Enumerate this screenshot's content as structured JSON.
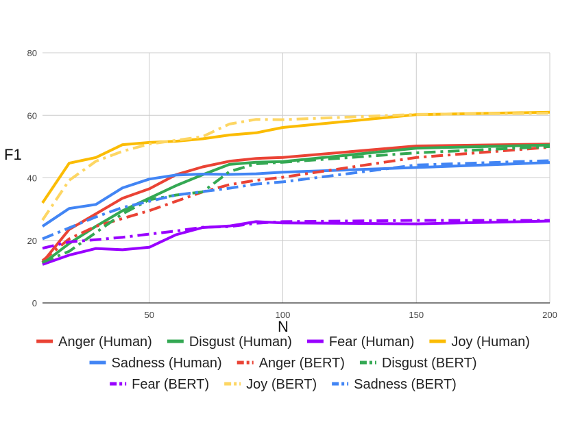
{
  "chart_data": {
    "type": "line",
    "title": "",
    "xlabel": "N",
    "ylabel": "F1",
    "xlim": [
      10,
      200
    ],
    "ylim": [
      0,
      80
    ],
    "xticks": [
      50,
      100,
      150,
      200
    ],
    "yticks": [
      0,
      20,
      40,
      60,
      80
    ],
    "grid": true,
    "legend_position": "bottom",
    "series": [
      {
        "name": "Anger (Human)",
        "color": "#ea4335",
        "style": "solid",
        "x": [
          10,
          20,
          30,
          40,
          50,
          60,
          70,
          80,
          90,
          100,
          150,
          200
        ],
        "y": [
          13,
          23.5,
          28.5,
          33.5,
          36.5,
          41,
          43.5,
          45.3,
          46.2,
          46.5,
          50.2,
          50.8
        ]
      },
      {
        "name": "Disgust (Human)",
        "color": "#34a853",
        "style": "solid",
        "x": [
          10,
          20,
          30,
          40,
          50,
          60,
          70,
          80,
          90,
          100,
          150,
          200
        ],
        "y": [
          12.5,
          19,
          24.5,
          29.5,
          33.5,
          37.5,
          41,
          44.3,
          45,
          45.2,
          49.5,
          50.5
        ]
      },
      {
        "name": "Fear (Human)",
        "color": "#9900ff",
        "style": "solid",
        "x": [
          10,
          20,
          30,
          40,
          50,
          60,
          70,
          80,
          90,
          100,
          150,
          200
        ],
        "y": [
          12.3,
          15.3,
          17.4,
          17,
          17.8,
          21.8,
          24.1,
          24.6,
          26,
          25.6,
          25.3,
          26.2
        ]
      },
      {
        "name": "Joy (Human)",
        "color": "#fbbc04",
        "style": "solid",
        "x": [
          10,
          20,
          30,
          40,
          50,
          60,
          70,
          80,
          90,
          100,
          150,
          200
        ],
        "y": [
          32,
          44.7,
          46.5,
          50.6,
          51.3,
          51.7,
          52.5,
          53.7,
          54.4,
          56.1,
          60.2,
          61
        ]
      },
      {
        "name": "Sadness (Human)",
        "color": "#4285f4",
        "style": "solid",
        "x": [
          10,
          20,
          30,
          40,
          50,
          60,
          70,
          80,
          90,
          100,
          150,
          200
        ],
        "y": [
          24.5,
          30.2,
          31.5,
          36.8,
          39.6,
          40.9,
          41.2,
          41.1,
          41.3,
          41.8,
          43.3,
          44.9
        ]
      },
      {
        "name": "Anger (BERT)",
        "color": "#ea4335",
        "style": "dashdot",
        "x": [
          10,
          20,
          30,
          40,
          50,
          60,
          70,
          80,
          90,
          100,
          150,
          200
        ],
        "y": [
          13.5,
          20.5,
          24.5,
          27,
          29.5,
          32.5,
          35.5,
          37.8,
          39.2,
          40.2,
          46.5,
          49.8
        ]
      },
      {
        "name": "Disgust (BERT)",
        "color": "#34a853",
        "style": "dashdot",
        "x": [
          10,
          20,
          30,
          40,
          50,
          60,
          70,
          80,
          90,
          100,
          150,
          200
        ],
        "y": [
          13,
          16.5,
          22.5,
          28.5,
          33,
          34.5,
          35.5,
          42,
          44.5,
          45,
          48,
          50
        ]
      },
      {
        "name": "Fear (BERT)",
        "color": "#9900ff",
        "style": "dashdot",
        "x": [
          10,
          20,
          30,
          40,
          50,
          60,
          70,
          80,
          90,
          100,
          150,
          200
        ],
        "y": [
          17.5,
          19.5,
          20.2,
          21,
          22,
          23,
          24.2,
          24.4,
          25.5,
          26,
          26.4,
          26.4
        ]
      },
      {
        "name": "Joy (BERT)",
        "color": "#fdd663",
        "style": "dashdot",
        "x": [
          10,
          20,
          30,
          40,
          50,
          60,
          70,
          80,
          90,
          100,
          150,
          200
        ],
        "y": [
          26.5,
          39.2,
          45.3,
          48.5,
          50.8,
          52,
          53.2,
          57.2,
          58.7,
          58.6,
          60.3,
          60.7
        ]
      },
      {
        "name": "Sadness (BERT)",
        "color": "#4285f4",
        "style": "dashdot",
        "x": [
          10,
          20,
          30,
          40,
          50,
          60,
          70,
          80,
          90,
          100,
          150,
          200
        ],
        "y": [
          20.5,
          24,
          27.5,
          30.5,
          32.5,
          34.5,
          35.6,
          36.7,
          38,
          38.7,
          44.1,
          45.5
        ]
      }
    ]
  }
}
